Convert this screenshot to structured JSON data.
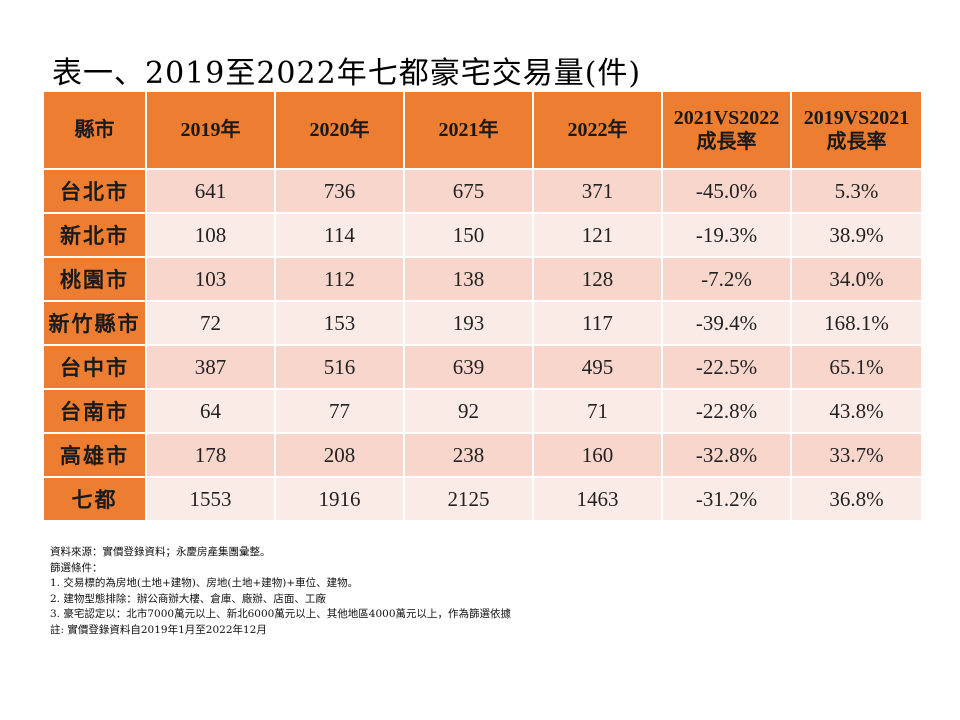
{
  "title": "表一、2019至2022年七都豪宅交易量(件)",
  "table": {
    "headers": [
      "縣市",
      "2019年",
      "2020年",
      "2021年",
      "2022年",
      "2021VS2022",
      "2019VS2021"
    ],
    "header_sub": [
      "",
      "",
      "",
      "",
      "",
      "成長率",
      "成長率"
    ],
    "rows": [
      {
        "region": "台北市",
        "y2019": "641",
        "y2020": "736",
        "y2021": "675",
        "y2022": "371",
        "g2122": "-45.0%",
        "g1921": "5.3%"
      },
      {
        "region": "新北市",
        "y2019": "108",
        "y2020": "114",
        "y2021": "150",
        "y2022": "121",
        "g2122": "-19.3%",
        "g1921": "38.9%"
      },
      {
        "region": "桃園市",
        "y2019": "103",
        "y2020": "112",
        "y2021": "138",
        "y2022": "128",
        "g2122": "-7.2%",
        "g1921": "34.0%"
      },
      {
        "region": "新竹縣市",
        "y2019": "72",
        "y2020": "153",
        "y2021": "193",
        "y2022": "117",
        "g2122": "-39.4%",
        "g1921": "168.1%"
      },
      {
        "region": "台中市",
        "y2019": "387",
        "y2020": "516",
        "y2021": "639",
        "y2022": "495",
        "g2122": "-22.5%",
        "g1921": "65.1%"
      },
      {
        "region": "台南市",
        "y2019": "64",
        "y2020": "77",
        "y2021": "92",
        "y2022": "71",
        "g2122": "-22.8%",
        "g1921": "43.8%"
      },
      {
        "region": "高雄市",
        "y2019": "178",
        "y2020": "208",
        "y2021": "238",
        "y2022": "160",
        "g2122": "-32.8%",
        "g1921": "33.7%"
      },
      {
        "region": "七都",
        "y2019": "1553",
        "y2020": "1916",
        "y2021": "2125",
        "y2022": "1463",
        "g2122": "-31.2%",
        "g1921": "36.8%"
      }
    ]
  },
  "notes": [
    "資料來源：實價登錄資料；永慶房產集團彙整。",
    "篩選條件：",
    "1. 交易標的為房地(土地+建物)、房地(土地+建物)+車位、建物。",
    "2. 建物型態排除：辦公商辦大樓、倉庫、廠辦、店面、工廠",
    "3. 豪宅認定以：北市7000萬元以上、新北6000萬元以上、其他地區4000萬元以上，作為篩選依據",
    "註: 實價登錄資料自2019年1月至2022年12月"
  ],
  "colors": {
    "header": "#ed7d31",
    "row_odd": "#f8d6cc",
    "row_even": "#fbebe7"
  }
}
